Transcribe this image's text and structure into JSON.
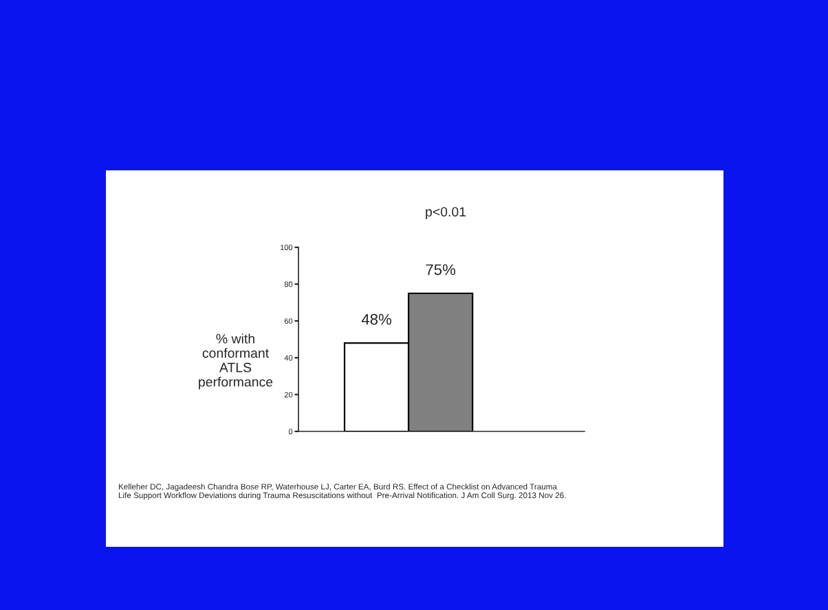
{
  "chart_data": {
    "type": "bar",
    "title": "p<0.01",
    "ylabel": "% with\nconformant\nATLS\nperformance",
    "categories": [
      null,
      null
    ],
    "values": [
      48,
      75
    ],
    "colors": [
      "#ffffff",
      "#808080"
    ],
    "value_labels": [
      "48%",
      "75%"
    ],
    "ylim": [
      0,
      100
    ],
    "yticks": [
      0,
      20,
      40,
      60,
      80,
      100
    ],
    "grid": false,
    "legend": false,
    "annotations": [
      "Kelleher DC, Jagadeesh Chandra Bose RP, Waterhouse LJ, Carter EA, Burd RS. Effect of a Checklist on Advanced Trauma\nLife Support Workflow Deviations during Trauma Resuscitations without  Pre-Arrival Notification. J Am Coll Surg. 2013 Nov 26."
    ]
  }
}
